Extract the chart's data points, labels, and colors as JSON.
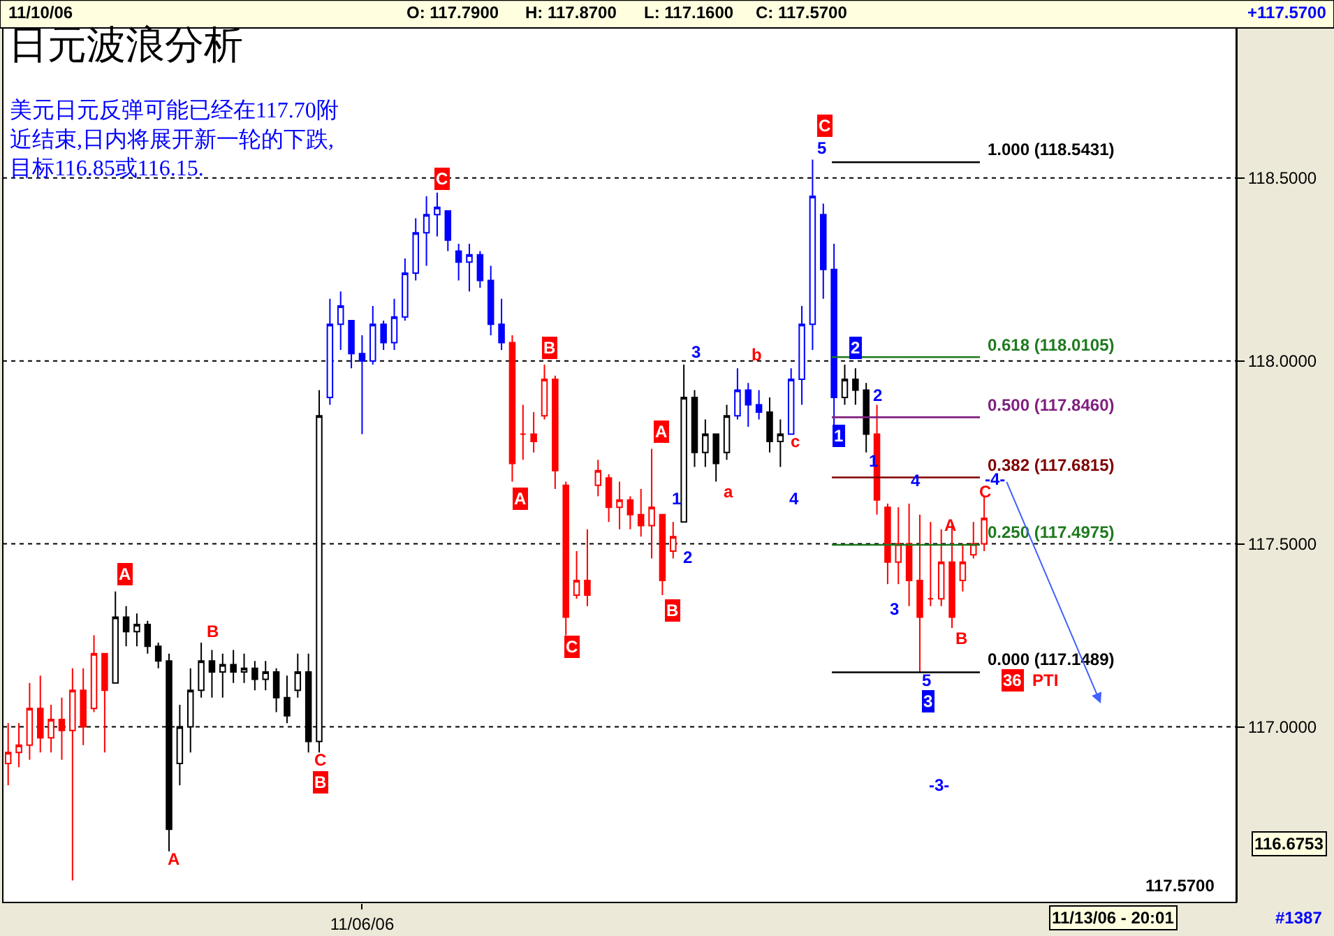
{
  "chart_data": {
    "type": "candlestick",
    "title": "日元波浪分析",
    "subtitle": "美元日元反弹可能已经在117.70附近结束,日内将展开新一轮的下跌,目标116.85或116.15.",
    "categories": [
      null,
      null,
      null,
      null,
      null,
      null,
      null,
      null,
      null,
      null,
      null,
      null,
      null,
      null,
      null,
      null,
      null,
      null,
      null,
      null,
      null,
      null,
      null,
      null,
      null,
      null,
      null,
      null,
      null,
      null,
      null,
      null,
      null,
      "11/06/06",
      null,
      null,
      null,
      null,
      null,
      null,
      null,
      null,
      null,
      null,
      null,
      null,
      null,
      null,
      null,
      null,
      null,
      null,
      null,
      null,
      null,
      null,
      null,
      null,
      null,
      null,
      null,
      null,
      null,
      null,
      null,
      null,
      null,
      null,
      null,
      null,
      null,
      null,
      null,
      null,
      null,
      null,
      null,
      null,
      null,
      null,
      null,
      null,
      null,
      null,
      null,
      null,
      null,
      null,
      null,
      null,
      null,
      null,
      null,
      null,
      null,
      null,
      null,
      null,
      null,
      null,
      null,
      null,
      null,
      null,
      null,
      null,
      null,
      null,
      null,
      null,
      null,
      null,
      null,
      null,
      null
    ],
    "ohlc": [
      [
        116.9,
        117.01,
        116.84,
        116.93
      ],
      [
        116.93,
        117.01,
        116.89,
        116.95
      ],
      [
        116.95,
        117.12,
        116.91,
        117.05
      ],
      [
        117.05,
        117.14,
        116.93,
        116.97
      ],
      [
        116.97,
        117.06,
        116.93,
        117.02
      ],
      [
        117.02,
        117.08,
        116.91,
        116.99
      ],
      [
        116.99,
        117.16,
        116.58,
        117.1
      ],
      [
        117.1,
        117.16,
        116.95,
        117.0
      ],
      [
        117.05,
        117.25,
        117.04,
        117.2
      ],
      [
        117.2,
        117.2,
        116.93,
        117.1
      ],
      [
        117.12,
        117.37,
        117.12,
        117.3
      ],
      [
        117.3,
        117.33,
        117.22,
        117.26
      ],
      [
        117.26,
        117.31,
        117.22,
        117.28
      ],
      [
        117.28,
        117.29,
        117.2,
        117.22
      ],
      [
        117.22,
        117.23,
        117.16,
        117.18
      ],
      [
        117.18,
        117.2,
        116.66,
        116.72
      ],
      [
        116.9,
        117.06,
        116.84,
        117.0
      ],
      [
        117.0,
        117.16,
        116.93,
        117.1
      ],
      [
        117.1,
        117.23,
        117.08,
        117.18
      ],
      [
        117.18,
        117.21,
        117.08,
        117.15
      ],
      [
        117.15,
        117.2,
        117.08,
        117.17
      ],
      [
        117.17,
        117.21,
        117.12,
        117.15
      ],
      [
        117.15,
        117.2,
        117.12,
        117.16
      ],
      [
        117.16,
        117.18,
        117.1,
        117.13
      ],
      [
        117.13,
        117.18,
        117.1,
        117.15
      ],
      [
        117.15,
        117.16,
        117.04,
        117.08
      ],
      [
        117.08,
        117.14,
        117.01,
        117.03
      ],
      [
        117.1,
        117.2,
        117.08,
        117.15
      ],
      [
        117.15,
        117.2,
        116.93,
        116.96
      ],
      [
        116.96,
        117.92,
        116.93,
        117.85
      ],
      [
        117.9,
        118.17,
        117.88,
        118.1
      ],
      [
        118.1,
        118.19,
        118.03,
        118.15
      ],
      [
        118.11,
        118.11,
        117.98,
        118.02
      ],
      [
        118.02,
        118.07,
        117.8,
        118.0
      ],
      [
        118.0,
        118.15,
        117.99,
        118.1
      ],
      [
        118.1,
        118.11,
        118.03,
        118.05
      ],
      [
        118.05,
        118.17,
        118.03,
        118.12
      ],
      [
        118.12,
        118.28,
        118.11,
        118.24
      ],
      [
        118.24,
        118.39,
        118.22,
        118.35
      ],
      [
        118.35,
        118.45,
        118.26,
        118.4
      ],
      [
        118.4,
        118.46,
        118.34,
        118.42
      ],
      [
        118.41,
        118.41,
        118.3,
        118.33
      ],
      [
        118.3,
        118.32,
        118.22,
        118.27
      ],
      [
        118.27,
        118.32,
        118.19,
        118.29
      ],
      [
        118.29,
        118.3,
        118.2,
        118.22
      ],
      [
        118.22,
        118.26,
        118.07,
        118.1
      ],
      [
        118.1,
        118.17,
        118.03,
        118.05
      ],
      [
        118.05,
        118.07,
        117.67,
        117.72
      ],
      [
        117.8,
        117.88,
        117.73,
        117.8
      ],
      [
        117.8,
        117.86,
        117.75,
        117.78
      ],
      [
        117.85,
        117.99,
        117.84,
        117.95
      ],
      [
        117.95,
        117.96,
        117.65,
        117.7
      ],
      [
        117.66,
        117.67,
        117.25,
        117.3
      ],
      [
        117.36,
        117.48,
        117.35,
        117.4
      ],
      [
        117.4,
        117.54,
        117.33,
        117.36
      ],
      [
        117.66,
        117.73,
        117.63,
        117.7
      ],
      [
        117.68,
        117.69,
        117.56,
        117.6
      ],
      [
        117.6,
        117.67,
        117.54,
        117.62
      ],
      [
        117.62,
        117.63,
        117.54,
        117.58
      ],
      [
        117.58,
        117.65,
        117.52,
        117.55
      ],
      [
        117.55,
        117.76,
        117.46,
        117.6
      ],
      [
        117.58,
        117.58,
        117.36,
        117.4
      ],
      [
        117.48,
        117.56,
        117.46,
        117.52
      ],
      [
        117.56,
        117.99,
        117.56,
        117.9
      ],
      [
        117.9,
        117.92,
        117.71,
        117.75
      ],
      [
        117.75,
        117.84,
        117.71,
        117.8
      ],
      [
        117.8,
        117.8,
        117.67,
        117.72
      ],
      [
        117.75,
        117.88,
        117.73,
        117.85
      ],
      [
        117.85,
        117.98,
        117.84,
        117.92
      ],
      [
        117.92,
        117.94,
        117.82,
        117.88
      ],
      [
        117.88,
        117.92,
        117.84,
        117.86
      ],
      [
        117.86,
        117.9,
        117.75,
        117.78
      ],
      [
        117.78,
        117.84,
        117.71,
        117.8
      ],
      [
        117.8,
        117.98,
        117.8,
        117.95
      ],
      [
        117.95,
        118.15,
        117.88,
        118.1
      ],
      [
        118.1,
        118.55,
        118.03,
        118.45
      ],
      [
        118.4,
        118.43,
        118.17,
        118.25
      ],
      [
        118.25,
        118.32,
        117.82,
        117.9
      ],
      [
        117.9,
        117.99,
        117.88,
        117.95
      ],
      [
        117.95,
        117.98,
        117.88,
        117.92
      ],
      [
        117.92,
        117.94,
        117.75,
        117.8
      ],
      [
        117.8,
        117.88,
        117.58,
        117.62
      ],
      [
        117.6,
        117.61,
        117.39,
        117.45
      ],
      [
        117.45,
        117.6,
        117.39,
        117.5
      ],
      [
        117.5,
        117.61,
        117.33,
        117.4
      ],
      [
        117.4,
        117.58,
        117.15,
        117.3
      ],
      [
        117.35,
        117.56,
        117.33,
        117.35
      ],
      [
        117.35,
        117.54,
        117.33,
        117.45
      ],
      [
        117.45,
        117.56,
        117.27,
        117.3
      ],
      [
        117.4,
        117.5,
        117.37,
        117.45
      ],
      [
        117.47,
        117.56,
        117.46,
        117.5
      ],
      [
        117.5,
        117.63,
        117.48,
        117.57
      ],
      null,
      null,
      null,
      null,
      null,
      null,
      null,
      null,
      null,
      null,
      null,
      null,
      null,
      null,
      null,
      null,
      null,
      null,
      null,
      null,
      null,
      null,
      null
    ],
    "colors": [
      "#ff0000",
      "#ff0000",
      "#ff0000",
      "#ff0000",
      "#ff0000",
      "#ff0000",
      "#ff0000",
      "#ff0000",
      "#ff0000",
      "#ff0000",
      "#000000",
      "#000000",
      "#000000",
      "#000000",
      "#000000",
      "#000000",
      "#000000",
      "#000000",
      "#000000",
      "#000000",
      "#000000",
      "#000000",
      "#000000",
      "#000000",
      "#000000",
      "#000000",
      "#000000",
      "#000000",
      "#000000",
      "#000000",
      "#0000ff",
      "#0000ff",
      "#0000ff",
      "#0000ff",
      "#0000ff",
      "#0000ff",
      "#0000ff",
      "#0000ff",
      "#0000ff",
      "#0000ff",
      "#0000ff",
      "#0000ff",
      "#0000ff",
      "#0000ff",
      "#0000ff",
      "#0000ff",
      "#0000ff",
      "#ff0000",
      "#ff0000",
      "#ff0000",
      "#ff0000",
      "#ff0000",
      "#ff0000",
      "#ff0000",
      "#ff0000",
      "#ff0000",
      "#ff0000",
      "#ff0000",
      "#ff0000",
      "#ff0000",
      "#ff0000",
      "#ff0000",
      "#ff0000",
      "#000000",
      "#000000",
      "#000000",
      "#000000",
      "#000000",
      "#0000ff",
      "#0000ff",
      "#0000ff",
      "#000000",
      "#000000",
      "#0000ff",
      "#0000ff",
      "#0000ff",
      "#0000ff",
      "#0000ff",
      "#000000",
      "#000000",
      "#000000",
      "#ff0000",
      "#ff0000",
      "#ff0000",
      "#ff0000",
      "#ff0000",
      "#ff0000",
      "#ff0000",
      "#ff0000",
      "#ff0000",
      "#ff0000",
      "#ff0000",
      "#ff0000",
      "#ff0000",
      "#ff0000",
      "#ff0000",
      "#ff0000",
      "#ff0000",
      "#ff0000",
      "#ff0000",
      "#ff0000",
      "#ff0000",
      "#ff0000",
      "#ff0000",
      "#ff0000",
      "#ff0000",
      "#ff0000",
      "#ff0000",
      "#ff0000",
      "#ff0000",
      "#ff0000",
      "#ff0000",
      "#ff0000",
      "#ff0000",
      "#ff0000"
    ],
    "ylim": [
      116.52,
      118.91
    ],
    "yticks": [
      {
        "value": 117,
        "label": "117.0000"
      },
      {
        "value": 117.5,
        "label": "117.5000"
      },
      {
        "value": 118,
        "label": "118.0000"
      },
      {
        "value": 118.5,
        "label": "118.5000"
      }
    ],
    "grid": "y",
    "ref_lines": [
      {
        "axis": "y",
        "value": 118.5431,
        "label": "1.000 (118.5431)",
        "color": "#000000"
      },
      {
        "axis": "y",
        "value": 118.0105,
        "label": "0.618 (118.0105)",
        "color": "#1f7a1f"
      },
      {
        "axis": "y",
        "value": 117.846,
        "label": "0.500 (117.8460)",
        "color": "#7f1f7f"
      },
      {
        "axis": "y",
        "value": 117.6815,
        "label": "0.382 (117.6815)",
        "color": "#800000"
      },
      {
        "axis": "y",
        "value": 117.4975,
        "label": "0.250 (117.4975)",
        "color": "#1f7a1f"
      },
      {
        "axis": "y",
        "value": 117.1489,
        "label": "0.000 (117.1489)",
        "color": "#000000"
      }
    ],
    "annotations": [
      "A",
      "A",
      "B",
      "C",
      "B",
      "C",
      "A",
      "B",
      "C",
      "A",
      "B",
      "1",
      "2",
      "3",
      "a",
      "b",
      "c",
      "4",
      "C",
      "5",
      "2",
      "1",
      "2",
      "1",
      "3",
      "4",
      "5",
      "3",
      "A",
      "B",
      "C",
      "-4-",
      "-3-",
      "11/10/06",
      "O: 117.7900",
      "H: 117.8700",
      "L: 117.1600",
      "C: 117.5700",
      "+117.5700",
      "116.6753",
      "117.5700",
      "11/13/06 - 20:01",
      "#1387",
      "36",
      "PTI"
    ]
  }
}
